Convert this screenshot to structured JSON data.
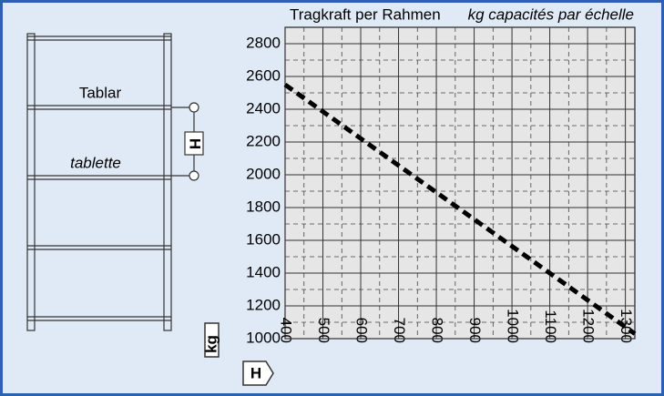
{
  "chart_data": {
    "type": "line",
    "title": "Tragkraft per Rahmen",
    "subtitle": "kg capacités par échelle",
    "shelf_label": "Tablar",
    "shelf_label_fr": "tablette",
    "height_symbol": "H",
    "y_unit": "kg",
    "x_unit": "H",
    "xlim": [
      400,
      1325
    ],
    "xticks": [
      400,
      500,
      600,
      700,
      800,
      900,
      1000,
      1100,
      1200,
      1300
    ],
    "xticks_minor": [
      450,
      550,
      650,
      750,
      850,
      950,
      1050,
      1150,
      1250
    ],
    "ylim": [
      1000,
      2900
    ],
    "yticks": [
      1000,
      1200,
      1400,
      1600,
      1800,
      2000,
      2200,
      2400,
      2600,
      2800
    ],
    "yticks_minor": [
      1100,
      1300,
      1500,
      1700,
      1900,
      2100,
      2300,
      2500,
      2700
    ],
    "grid": true,
    "series": [
      {
        "color": "#000000",
        "x": [
          400,
          1325
        ],
        "values": [
          2550,
          1030
        ]
      }
    ]
  }
}
